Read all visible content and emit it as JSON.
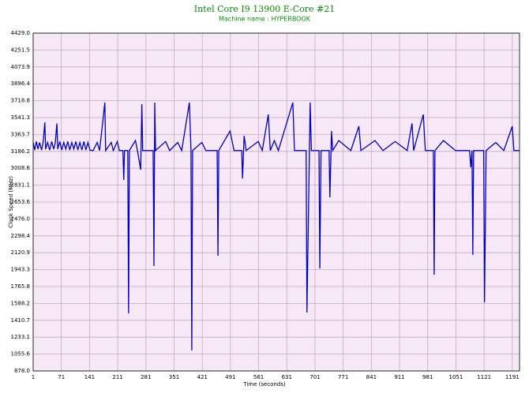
{
  "chart_data": {
    "type": "line",
    "title": "Intel Core I9 13900 E-Core #21",
    "subtitle": "Machine name : HYPERBOOK",
    "x_label": "Time (seconds)",
    "y_label": "Clock Speed (MHz)",
    "grid": true,
    "xlim": [
      1,
      1209
    ],
    "ylim": [
      878,
      4429
    ],
    "xticks": [
      1,
      71,
      141,
      211,
      281,
      351,
      421,
      491,
      561,
      631,
      701,
      771,
      841,
      911,
      981,
      1051,
      1121,
      1191
    ],
    "yticks": [
      {
        "value": 878,
        "label": "878.0"
      },
      1055.6,
      1233.1,
      1410.7,
      1588.2,
      1765.8,
      1943.3,
      2120.9,
      2298.4,
      {
        "value": 2476,
        "label": "2476.0"
      },
      2653.6,
      2831.1,
      3008.6,
      3186.2,
      3363.7,
      3541.3,
      3718.8,
      3896.4,
      4073.9,
      4251.5,
      {
        "value": 4429,
        "label": "4429.0"
      }
    ],
    "x": [
      1,
      5,
      9,
      13,
      17,
      22,
      26,
      30,
      32,
      37,
      42,
      47,
      52,
      56,
      60,
      62,
      67,
      72,
      77,
      82,
      87,
      92,
      97,
      102,
      107,
      112,
      117,
      122,
      127,
      132,
      137,
      142,
      150,
      160,
      166,
      179,
      181,
      195,
      200,
      210,
      215,
      224,
      226,
      228,
      236,
      238,
      240,
      255,
      260,
      268,
      271,
      273,
      299,
      301,
      303,
      305,
      330,
      340,
      360,
      370,
      389,
      393,
      395,
      397,
      420,
      430,
      458,
      460,
      462,
      490,
      500,
      519,
      521,
      525,
      530,
      560,
      570,
      585,
      590,
      600,
      610,
      646,
      650,
      679,
      681,
      689,
      692,
      711,
      713,
      716,
      736,
      738,
      742,
      745,
      760,
      790,
      810,
      815,
      850,
      870,
      900,
      930,
      942,
      946,
      970,
      975,
      995,
      997,
      999,
      1020,
      1050,
      1085,
      1088,
      1091,
      1093,
      1095,
      1120,
      1122,
      1124,
      1126,
      1150,
      1170,
      1191,
      1195,
      1209
    ],
    "series": [
      {
        "name": "Clock Speed",
        "color": "#0000c0",
        "values": [
          3280,
          3200,
          3290,
          3210,
          3280,
          3200,
          3290,
          3491,
          3210,
          3280,
          3200,
          3290,
          3210,
          3280,
          3480,
          3210,
          3290,
          3200,
          3280,
          3210,
          3290,
          3200,
          3280,
          3210,
          3290,
          3200,
          3280,
          3200,
          3290,
          3200,
          3280,
          3200,
          3195,
          3280,
          3195,
          3699,
          3195,
          3280,
          3195,
          3290,
          3195,
          3195,
          2886,
          3195,
          3195,
          1484,
          3195,
          3300,
          3195,
          2994,
          3682,
          3195,
          3195,
          1981,
          3699,
          3195,
          3290,
          3195,
          3280,
          3195,
          3699,
          3195,
          1094,
          3195,
          3280,
          3195,
          3195,
          2089,
          3195,
          3400,
          3195,
          3195,
          2902,
          3350,
          3195,
          3290,
          3195,
          3574,
          3195,
          3300,
          3195,
          3699,
          3195,
          3195,
          1492,
          3699,
          3195,
          3195,
          1956,
          3195,
          3195,
          2703,
          3400,
          3195,
          3300,
          3195,
          3450,
          3195,
          3300,
          3195,
          3290,
          3195,
          3480,
          3195,
          3574,
          3195,
          3195,
          1890,
          3195,
          3300,
          3195,
          3195,
          3019,
          3195,
          2098,
          3195,
          3195,
          1600,
          2346,
          3195,
          3280,
          3195,
          3450,
          3195,
          3195
        ]
      }
    ]
  }
}
